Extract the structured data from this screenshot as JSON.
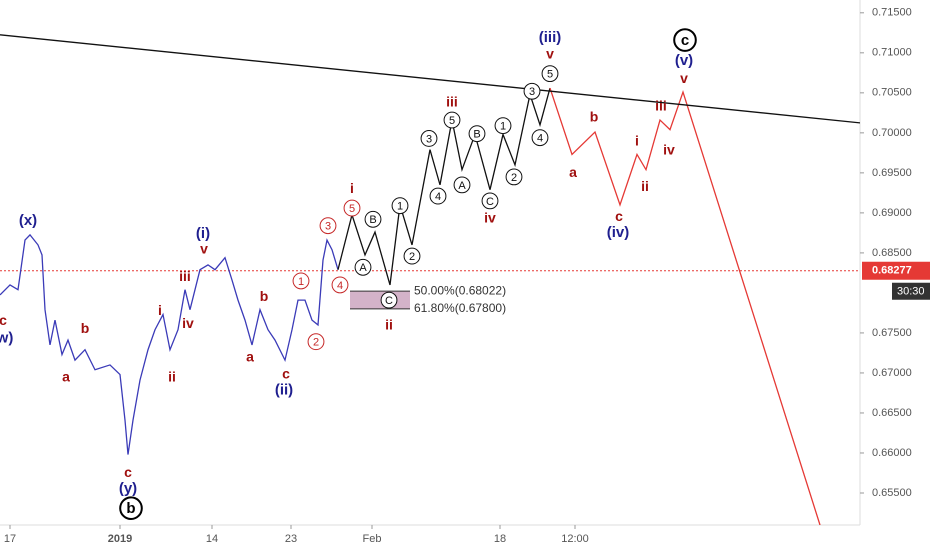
{
  "chart_data": {
    "type": "line",
    "xlim": [
      0,
      860
    ],
    "ylim": [
      0.651,
      0.7166
    ],
    "xticks": [
      {
        "value": 10,
        "label": "17"
      },
      {
        "value": 120,
        "label": "2019"
      },
      {
        "value": 212,
        "label": "14"
      },
      {
        "value": 291,
        "label": "23"
      },
      {
        "value": 372,
        "label": "Feb"
      },
      {
        "value": 500,
        "label": "18"
      },
      {
        "value": 575,
        "label": "12:00"
      }
    ],
    "yticks": [
      {
        "value": 0.715,
        "label": "0.71500"
      },
      {
        "value": 0.71,
        "label": "0.71000"
      },
      {
        "value": 0.705,
        "label": "0.70500"
      },
      {
        "value": 0.7,
        "label": "0.70000"
      },
      {
        "value": 0.695,
        "label": "0.69500"
      },
      {
        "value": 0.69,
        "label": "0.69000"
      },
      {
        "value": 0.685,
        "label": "0.68500"
      },
      {
        "value": 0.675,
        "label": "0.67500"
      },
      {
        "value": 0.67,
        "label": "0.67000"
      },
      {
        "value": 0.665,
        "label": "0.66500"
      },
      {
        "value": 0.66,
        "label": "0.66000"
      },
      {
        "value": 0.655,
        "label": "0.65500"
      }
    ],
    "series": [
      {
        "color": "#3b3bb8",
        "x": [
          0,
          10,
          18,
          25,
          30,
          38,
          42,
          45,
          50,
          55,
          62,
          68,
          75,
          85,
          95,
          110,
          120,
          125,
          128,
          133,
          140,
          148,
          155,
          163,
          170,
          178,
          185,
          190,
          200,
          208,
          215,
          225,
          232,
          238,
          245,
          252,
          260,
          268,
          275,
          285,
          292,
          298,
          305,
          312,
          318,
          323,
          327,
          332,
          338
        ],
        "values": [
          0.67975,
          0.681,
          0.6804,
          0.6866,
          0.68725,
          0.686,
          0.68475,
          0.6779,
          0.6735,
          0.6766,
          0.6723,
          0.6741,
          0.6716,
          0.6729,
          0.6704,
          0.671,
          0.6698,
          0.6641,
          0.6598,
          0.6641,
          0.6691,
          0.6729,
          0.6754,
          0.6773,
          0.6729,
          0.6754,
          0.6804,
          0.6779,
          0.6829,
          0.6835,
          0.6829,
          0.6844,
          0.6816,
          0.6791,
          0.6766,
          0.6735,
          0.6779,
          0.6754,
          0.6741,
          0.6716,
          0.6754,
          0.6791,
          0.6791,
          0.6766,
          0.676,
          0.6841,
          0.6866,
          0.6854,
          0.6829
        ]
      },
      {
        "color": "#111111",
        "x": [
          338,
          352,
          365,
          375,
          390,
          400,
          412,
          430,
          440,
          452,
          462,
          475,
          490,
          503,
          515,
          530,
          540,
          550
        ],
        "values": [
          0.6829,
          0.68975,
          0.68475,
          0.6876,
          0.681,
          0.691,
          0.686,
          0.6979,
          0.6935,
          0.7016,
          0.6954,
          0.6998,
          0.6929,
          0.6998,
          0.696,
          0.7048,
          0.701,
          0.7056
        ]
      },
      {
        "color": "#e53935",
        "x": [
          550,
          572,
          595,
          620,
          637,
          646,
          660,
          670,
          683,
          820
        ],
        "values": [
          0.7056,
          0.6973,
          0.7001,
          0.691,
          0.6973,
          0.6954,
          0.7016,
          0.7004,
          0.7051,
          0.651
        ]
      },
      {
        "color": "#111111",
        "x": [
          0,
          860
        ],
        "values": [
          0.71225,
          0.70125
        ]
      }
    ],
    "current_price": {
      "value": 0.68277,
      "label": "0.68277",
      "color": "#e53935"
    },
    "countdown": "30:30",
    "fib": {
      "x": [
        350,
        410
      ],
      "color": "#c9a0bb",
      "levels": [
        {
          "value": 0.68022,
          "label": "50.00%(0.68022)"
        },
        {
          "value": 0.678,
          "label": "61.80%(0.67800)"
        }
      ]
    },
    "annotation_groups": [
      {
        "color": "#1f1f8f",
        "circled": false,
        "size": 15,
        "items": [
          {
            "text": "(x)",
            "x": 28,
            "y": 0.6891
          },
          {
            "text": "w)",
            "x": 5,
            "y": 0.6744
          },
          {
            "text": "(y)",
            "x": 128,
            "y": 0.6556
          },
          {
            "text": "(i)",
            "x": 203,
            "y": 0.6875
          },
          {
            "text": "(ii)",
            "x": 284,
            "y": 0.6679
          },
          {
            "text": "(iii)",
            "x": 550,
            "y": 0.712
          },
          {
            "text": "(iv)",
            "x": 618,
            "y": 0.6876
          },
          {
            "text": "(v)",
            "x": 684,
            "y": 0.7091
          }
        ]
      },
      {
        "color": "#a0100f",
        "circled": false,
        "size": 14,
        "items": [
          {
            "text": "c",
            "x": 3,
            "y": 0.6766
          },
          {
            "text": "b",
            "x": 85,
            "y": 0.6756
          },
          {
            "text": "a",
            "x": 66,
            "y": 0.6695
          },
          {
            "text": "c",
            "x": 128,
            "y": 0.6576
          },
          {
            "text": "i",
            "x": 160,
            "y": 0.6778
          },
          {
            "text": "ii",
            "x": 172,
            "y": 0.6695
          },
          {
            "text": "iii",
            "x": 185,
            "y": 0.6821
          },
          {
            "text": "iv",
            "x": 188,
            "y": 0.6762
          },
          {
            "text": "v",
            "x": 204,
            "y": 0.6855
          },
          {
            "text": "b",
            "x": 264,
            "y": 0.6796
          },
          {
            "text": "a",
            "x": 250,
            "y": 0.672
          },
          {
            "text": "c",
            "x": 286,
            "y": 0.6699
          },
          {
            "text": "i",
            "x": 352,
            "y": 0.6931
          },
          {
            "text": "ii",
            "x": 389,
            "y": 0.676
          },
          {
            "text": "iii",
            "x": 452,
            "y": 0.7039
          },
          {
            "text": "v",
            "x": 550,
            "y": 0.7099
          },
          {
            "text": "iv",
            "x": 490,
            "y": 0.6894
          },
          {
            "text": "a",
            "x": 573,
            "y": 0.6951
          },
          {
            "text": "b",
            "x": 594,
            "y": 0.702
          },
          {
            "text": "c",
            "x": 619,
            "y": 0.6896
          },
          {
            "text": "i",
            "x": 637,
            "y": 0.699
          },
          {
            "text": "ii",
            "x": 645,
            "y": 0.6933
          },
          {
            "text": "iii",
            "x": 661,
            "y": 0.7034
          },
          {
            "text": "iv",
            "x": 669,
            "y": 0.6979
          },
          {
            "text": "v",
            "x": 684,
            "y": 0.7068
          }
        ]
      },
      {
        "color": "#c62828",
        "circled": true,
        "size": 11,
        "items": [
          {
            "text": "1",
            "x": 301,
            "y": 0.6815
          },
          {
            "text": "2",
            "x": 316,
            "y": 0.6739
          },
          {
            "text": "3",
            "x": 328,
            "y": 0.6884
          },
          {
            "text": "4",
            "x": 340,
            "y": 0.681
          },
          {
            "text": "5",
            "x": 352,
            "y": 0.6906
          }
        ]
      },
      {
        "color": "#111111",
        "circled": true,
        "size": 11,
        "items": [
          {
            "text": "A",
            "x": 363,
            "y": 0.6832
          },
          {
            "text": "B",
            "x": 373,
            "y": 0.6892
          },
          {
            "text": "C",
            "x": 389,
            "y": 0.6791
          },
          {
            "text": "1",
            "x": 400,
            "y": 0.6909
          },
          {
            "text": "2",
            "x": 412,
            "y": 0.6846
          },
          {
            "text": "3",
            "x": 429,
            "y": 0.6993
          },
          {
            "text": "4",
            "x": 438,
            "y": 0.6921
          },
          {
            "text": "5",
            "x": 452,
            "y": 0.7016
          },
          {
            "text": "A",
            "x": 462,
            "y": 0.6935
          },
          {
            "text": "B",
            "x": 477,
            "y": 0.6999
          },
          {
            "text": "C",
            "x": 490,
            "y": 0.6915
          },
          {
            "text": "1",
            "x": 503,
            "y": 0.7009
          },
          {
            "text": "2",
            "x": 514,
            "y": 0.6945
          },
          {
            "text": "3",
            "x": 532,
            "y": 0.7052
          },
          {
            "text": "4",
            "x": 540,
            "y": 0.6994
          },
          {
            "text": "5",
            "x": 550,
            "y": 0.7074
          }
        ]
      },
      {
        "color": "#000000",
        "circled": true,
        "size": 15,
        "items": [
          {
            "text": "b",
            "x": 131,
            "y": 0.6531
          },
          {
            "text": "c",
            "x": 685,
            "y": 0.7116
          }
        ]
      }
    ]
  }
}
